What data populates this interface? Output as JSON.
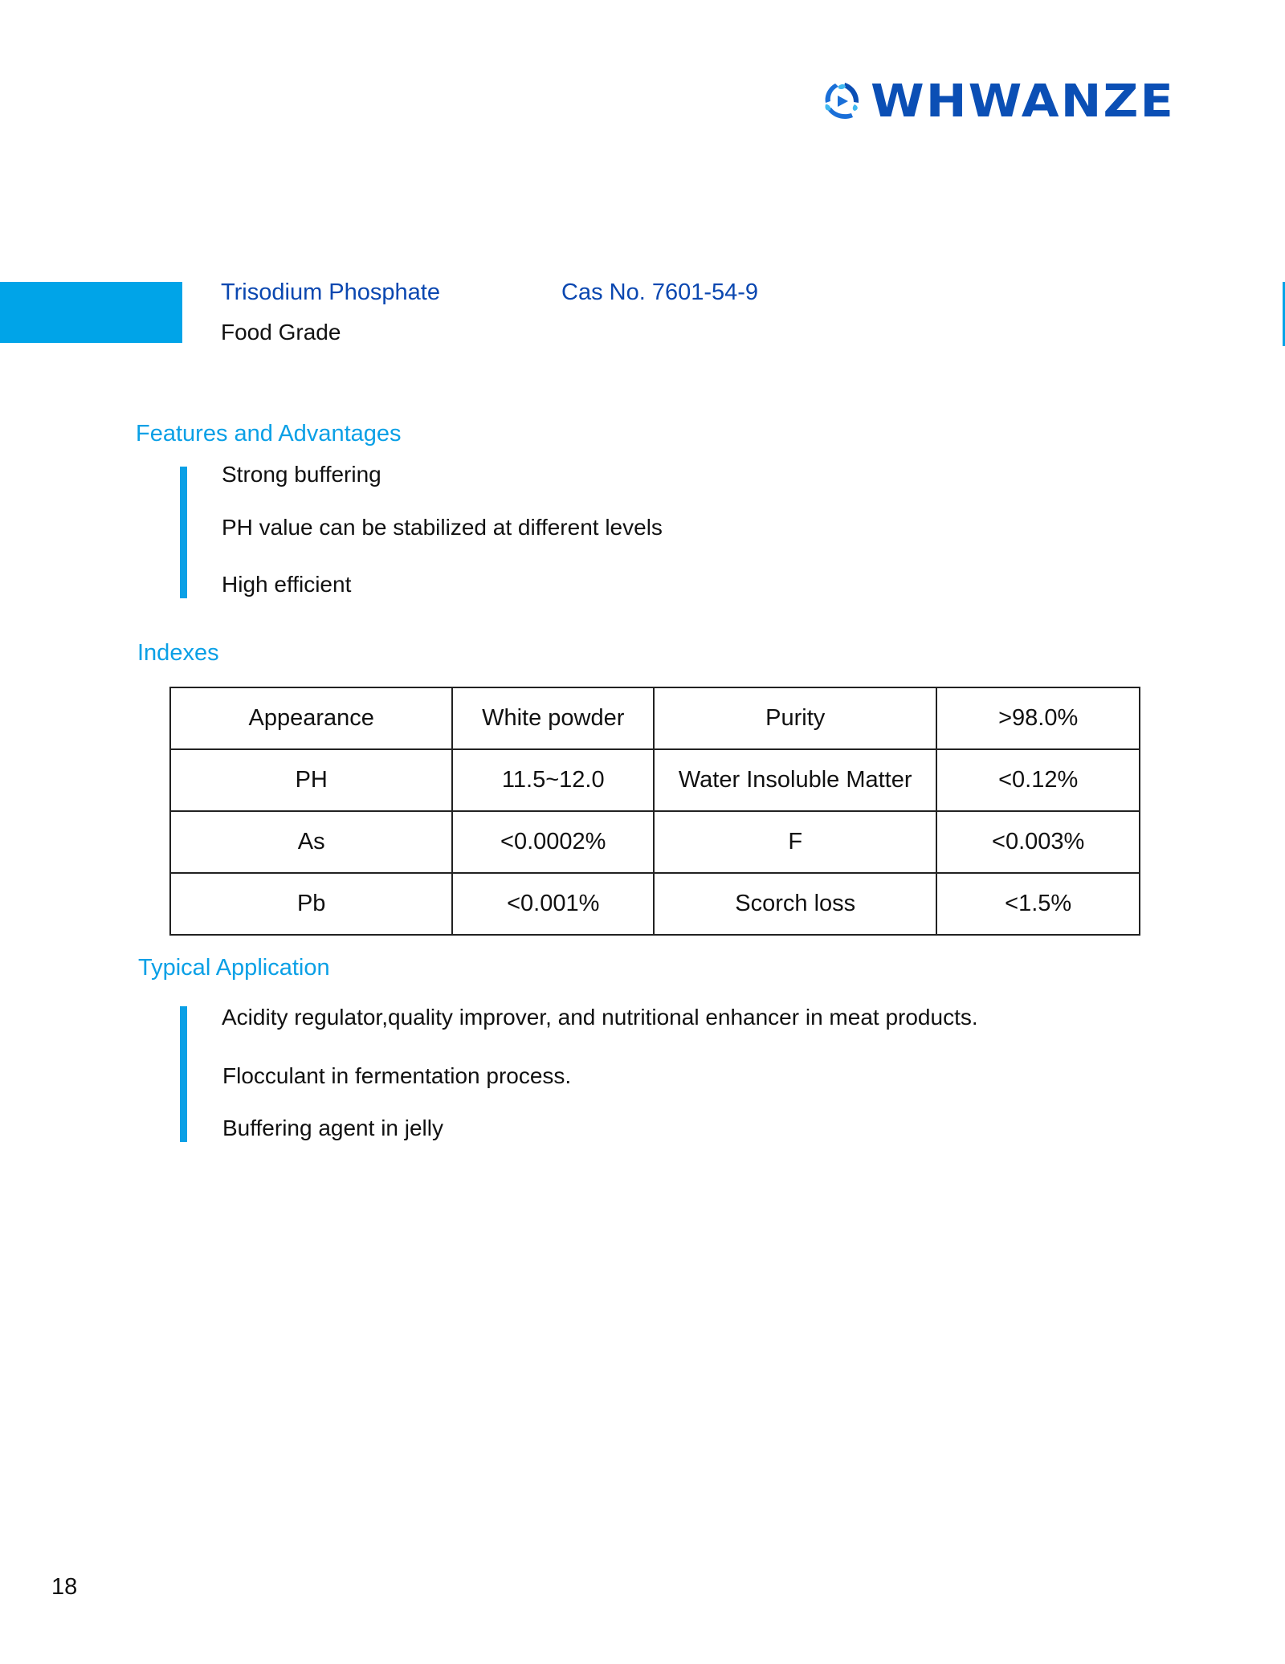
{
  "logo": {
    "text": "WHWANZE",
    "icon": "tri-swirl-play-icon",
    "color": "#0B4FB5"
  },
  "product": {
    "name": "Trisodium Phosphate",
    "cas": "Cas No. 7601-54-9",
    "grade": "Food Grade"
  },
  "features": {
    "heading": "Features and Advantages",
    "items": [
      "Strong buffering",
      "PH value can be stabilized at different levels",
      "High efficient"
    ]
  },
  "indexes": {
    "heading": "Indexes",
    "rows": [
      [
        "Appearance",
        "White powder",
        "Purity",
        ">98.0%"
      ],
      [
        "PH",
        "11.5~12.0",
        "Water Insoluble Matter",
        "<0.12%"
      ],
      [
        "As",
        "<0.0002%",
        "F",
        "<0.003%"
      ],
      [
        "Pb",
        "<0.001%",
        "Scorch loss",
        "<1.5%"
      ]
    ]
  },
  "application": {
    "heading": "Typical Application",
    "items": [
      "Acidity regulator,quality improver, and nutritional enhancer in meat products.",
      "Flocculant in fermentation process.",
      "Buffering agent in jelly"
    ]
  },
  "page_number": "18",
  "colors": {
    "accent": "#00A4E8",
    "heading": "#0AA0E6",
    "title": "#0A47B0"
  }
}
